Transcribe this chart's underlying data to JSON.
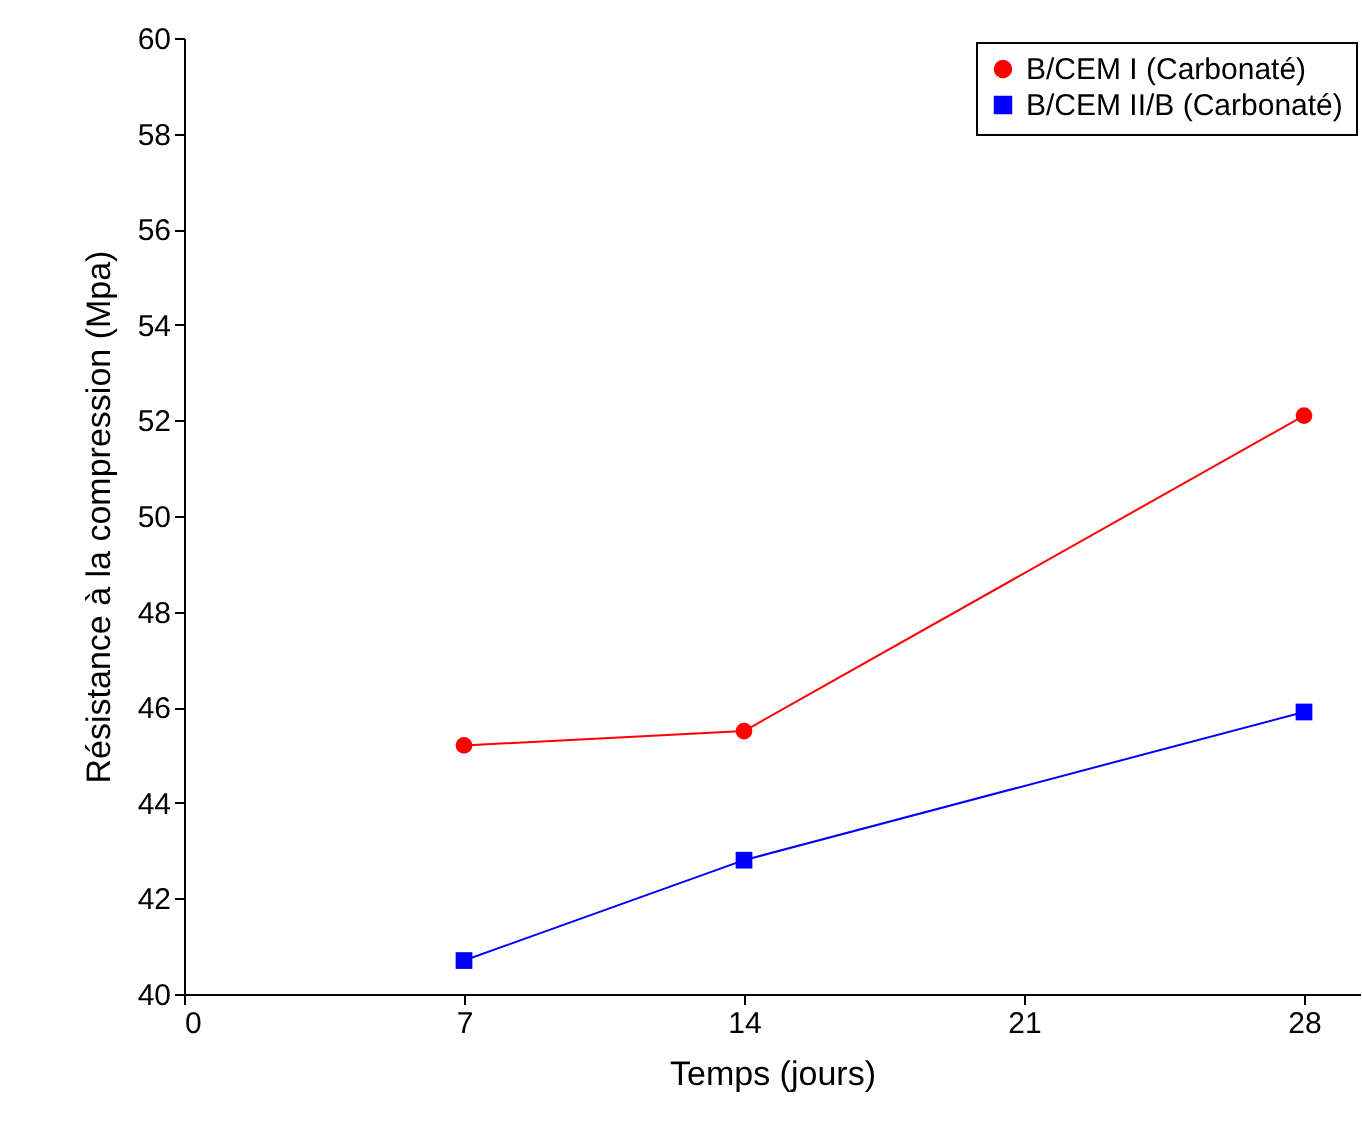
{
  "chart_data": {
    "type": "line",
    "xlabel": "Temps (jours)",
    "ylabel": "Résistance à la compression (Mpa)",
    "x": [
      7,
      14,
      28
    ],
    "series": [
      {
        "name": "B/CEM I (Carbonaté)",
        "color": "#ff0000",
        "marker": "circle",
        "values": [
          45.2,
          45.5,
          52.1
        ]
      },
      {
        "name": "B/CEM II/B (Carbonaté)",
        "color": "#0000ff",
        "marker": "square",
        "values": [
          40.7,
          42.8,
          45.9
        ]
      }
    ],
    "xlim": [
      0,
      29.4
    ],
    "xticks": [
      0,
      7,
      14,
      21,
      28
    ],
    "ylim": [
      40,
      60
    ],
    "yticks": [
      40,
      42,
      44,
      46,
      48,
      50,
      52,
      54,
      56,
      58,
      60
    ],
    "grid": false,
    "legend": "top right",
    "line_style": "solid"
  }
}
